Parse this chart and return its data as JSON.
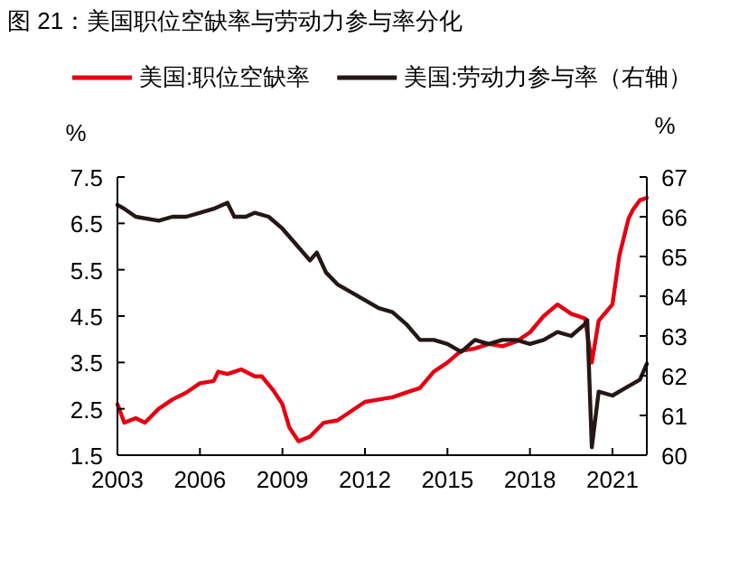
{
  "chart_data": {
    "type": "line",
    "title": "图 21：美国职位空缺率与劳动力参与率分化",
    "ylabel": "%",
    "y2label": "%",
    "xlim": [
      "2003-01",
      "2022-04"
    ],
    "xticks": [
      "2003",
      "2006",
      "2009",
      "2012",
      "2015",
      "2018",
      "2021"
    ],
    "ylim": [
      1.5,
      7.5
    ],
    "yticks": [
      1.5,
      2.5,
      3.5,
      4.5,
      5.5,
      6.5,
      7.5
    ],
    "y2lim": [
      60,
      67
    ],
    "y2ticks": [
      60,
      61,
      62,
      63,
      64,
      65,
      66,
      67
    ],
    "legend": "top",
    "grid": false,
    "series": [
      {
        "name": "美国:职位空缺率",
        "color": "#e60012",
        "x": [
          "2003-01",
          "2003-04",
          "2003-09",
          "2004-01",
          "2004-07",
          "2005-01",
          "2005-07",
          "2006-01",
          "2006-07",
          "2006-09",
          "2007-01",
          "2007-07",
          "2008-01",
          "2008-04",
          "2008-09",
          "2009-01",
          "2009-04",
          "2009-08",
          "2010-01",
          "2010-07",
          "2011-01",
          "2011-07",
          "2012-01",
          "2012-07",
          "2013-01",
          "2013-07",
          "2014-01",
          "2014-07",
          "2015-01",
          "2015-07",
          "2016-01",
          "2016-07",
          "2017-01",
          "2017-07",
          "2018-01",
          "2018-07",
          "2019-01",
          "2019-07",
          "2020-01",
          "2020-04",
          "2020-07",
          "2021-01",
          "2021-04",
          "2021-08",
          "2021-10",
          "2022-01",
          "2022-04"
        ],
        "values": [
          2.6,
          2.2,
          2.3,
          2.2,
          2.5,
          2.7,
          2.85,
          3.05,
          3.1,
          3.3,
          3.25,
          3.35,
          3.2,
          3.2,
          2.9,
          2.6,
          2.1,
          1.8,
          1.9,
          2.2,
          2.25,
          2.45,
          2.65,
          2.7,
          2.75,
          2.85,
          2.95,
          3.3,
          3.5,
          3.75,
          3.8,
          3.9,
          3.85,
          3.95,
          4.15,
          4.5,
          4.75,
          4.55,
          4.45,
          3.5,
          4.4,
          4.75,
          5.8,
          6.6,
          6.8,
          7.0,
          7.05
        ]
      },
      {
        "name": "美国:劳动力参与率（右轴）",
        "color": "#231815",
        "axis": "y2",
        "x": [
          "2003-01",
          "2003-04",
          "2003-09",
          "2004-07",
          "2005-01",
          "2005-07",
          "2006-01",
          "2006-07",
          "2007-01",
          "2007-04",
          "2007-09",
          "2008-01",
          "2008-07",
          "2009-01",
          "2009-07",
          "2010-01",
          "2010-04",
          "2010-08",
          "2011-01",
          "2011-07",
          "2012-01",
          "2012-07",
          "2013-01",
          "2013-07",
          "2014-01",
          "2014-07",
          "2015-01",
          "2015-07",
          "2016-01",
          "2016-07",
          "2017-01",
          "2017-07",
          "2018-01",
          "2018-07",
          "2019-01",
          "2019-07",
          "2020-01",
          "2020-02",
          "2020-04",
          "2020-07",
          "2021-01",
          "2021-07",
          "2022-01",
          "2022-04"
        ],
        "values": [
          66.3,
          66.2,
          66.0,
          65.9,
          66.0,
          66.0,
          66.1,
          66.2,
          66.35,
          66.0,
          66.0,
          66.1,
          66.0,
          65.7,
          65.3,
          64.9,
          65.1,
          64.6,
          64.3,
          64.1,
          63.9,
          63.7,
          63.6,
          63.3,
          62.9,
          62.9,
          62.8,
          62.6,
          62.9,
          62.8,
          62.9,
          62.9,
          62.8,
          62.9,
          63.1,
          63.0,
          63.3,
          63.4,
          60.2,
          61.6,
          61.5,
          61.7,
          61.9,
          62.3
        ]
      }
    ]
  }
}
